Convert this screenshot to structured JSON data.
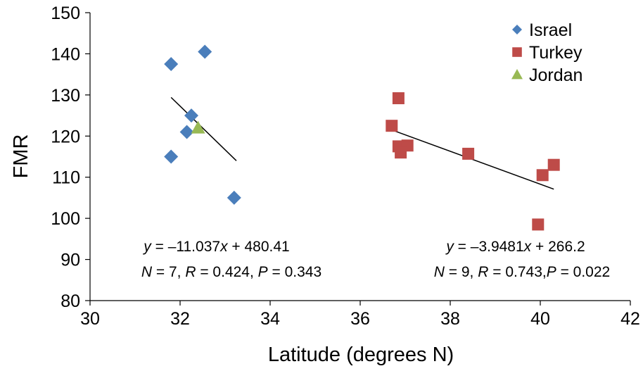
{
  "chart_data": {
    "type": "scatter",
    "title": "",
    "xlabel": "Latitude (degrees N)",
    "ylabel": "FMR",
    "xlim": [
      30,
      42
    ],
    "ylim": [
      80,
      150
    ],
    "x_ticks": [
      "30",
      "32",
      "34",
      "36",
      "38",
      "40",
      "42"
    ],
    "y_ticks": [
      "80",
      "90",
      "100",
      "110",
      "120",
      "130",
      "140",
      "150"
    ],
    "grid": false,
    "legend_position": "top-right",
    "series": [
      {
        "name": "Israel",
        "marker": "diamond",
        "color": "#4a7ebb",
        "points": [
          [
            31.8,
            137.5
          ],
          [
            32.55,
            140.5
          ],
          [
            32.25,
            125.0
          ],
          [
            32.15,
            121.0
          ],
          [
            31.8,
            115.0
          ],
          [
            33.2,
            105.0
          ]
        ]
      },
      {
        "name": "Turkey",
        "marker": "square",
        "color": "#be4b48",
        "points": [
          [
            36.85,
            129.2
          ],
          [
            36.7,
            122.5
          ],
          [
            36.85,
            117.5
          ],
          [
            37.05,
            117.7
          ],
          [
            36.9,
            116.0
          ],
          [
            38.4,
            115.7
          ],
          [
            40.3,
            113.0
          ],
          [
            40.05,
            110.5
          ],
          [
            39.95,
            98.5
          ]
        ]
      },
      {
        "name": "Jordan",
        "marker": "triangle",
        "color": "#98b954",
        "points": [
          [
            32.4,
            122.0
          ]
        ]
      }
    ],
    "trendlines": [
      {
        "from": [
          31.8,
          129.4
        ],
        "to": [
          33.25,
          114.0
        ]
      },
      {
        "from": [
          36.75,
          121.3
        ],
        "to": [
          40.3,
          107.1
        ]
      }
    ],
    "annotations": [
      {
        "line1": [
          {
            "text": "y",
            "italic": true
          },
          {
            "text": " = –11.037"
          },
          {
            "text": "x",
            "italic": true
          },
          {
            "text": " + 480.41"
          }
        ],
        "line2": [
          {
            "text": "N",
            "italic": true
          },
          {
            "text": " = 7, "
          },
          {
            "text": "R",
            "italic": true
          },
          {
            "text": " = 0.424, "
          },
          {
            "text": "P",
            "italic": true
          },
          {
            "text": " = 0.343"
          }
        ]
      },
      {
        "line1": [
          {
            "text": "y",
            "italic": true
          },
          {
            "text": " = –3.9481"
          },
          {
            "text": "x",
            "italic": true
          },
          {
            "text": " + 266.2"
          }
        ],
        "line2": [
          {
            "text": "N",
            "italic": true
          },
          {
            "text": " = 9, "
          },
          {
            "text": "R",
            "italic": true
          },
          {
            "text": " = 0.743,"
          },
          {
            "text": "P",
            "italic": true
          },
          {
            "text": " = 0.022"
          }
        ]
      }
    ]
  }
}
